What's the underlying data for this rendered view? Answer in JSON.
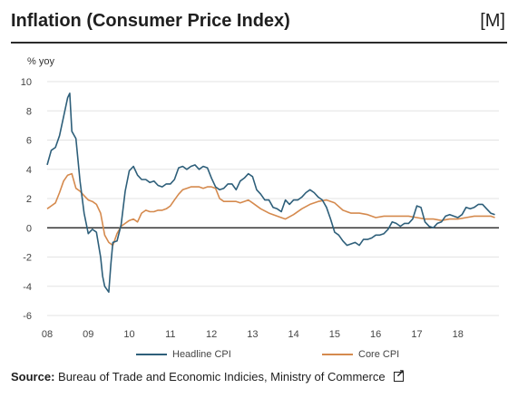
{
  "header": {
    "title": "Inflation (Consumer Price Index)",
    "frequency": "[M]"
  },
  "source": {
    "label": "Source:",
    "text": "Bureau of Trade and Economic Indicies, Ministry of Commerce",
    "icon": "external-link-icon"
  },
  "chart_data": {
    "type": "line",
    "ylabel": "% yoy",
    "ylim": [
      -6,
      10
    ],
    "yticks": [
      -6,
      -4,
      -2,
      0,
      2,
      4,
      6,
      8,
      10
    ],
    "xlim": [
      2008,
      2019
    ],
    "xticks": [
      {
        "value": 2008,
        "label": "08"
      },
      {
        "value": 2009,
        "label": "09"
      },
      {
        "value": 2010,
        "label": "10"
      },
      {
        "value": 2011,
        "label": "11"
      },
      {
        "value": 2012,
        "label": "12"
      },
      {
        "value": 2013,
        "label": "13"
      },
      {
        "value": 2014,
        "label": "14"
      },
      {
        "value": 2015,
        "label": "15"
      },
      {
        "value": 2016,
        "label": "16"
      },
      {
        "value": 2017,
        "label": "17"
      },
      {
        "value": 2018,
        "label": "18"
      }
    ],
    "grid": true,
    "legend_position": "bottom",
    "zero_line": true,
    "series": [
      {
        "name": "Headline CPI",
        "color": "#2e5f7a",
        "x": [
          2008.0,
          2008.1,
          2008.2,
          2008.3,
          2008.4,
          2008.5,
          2008.55,
          2008.6,
          2008.7,
          2008.8,
          2008.9,
          2009.0,
          2009.1,
          2009.2,
          2009.3,
          2009.35,
          2009.4,
          2009.5,
          2009.55,
          2009.6,
          2009.7,
          2009.8,
          2009.9,
          2010.0,
          2010.1,
          2010.2,
          2010.3,
          2010.4,
          2010.5,
          2010.6,
          2010.7,
          2010.8,
          2010.9,
          2011.0,
          2011.1,
          2011.2,
          2011.3,
          2011.4,
          2011.5,
          2011.6,
          2011.7,
          2011.8,
          2011.9,
          2012.0,
          2012.1,
          2012.2,
          2012.3,
          2012.4,
          2012.5,
          2012.6,
          2012.7,
          2012.8,
          2012.9,
          2013.0,
          2013.1,
          2013.2,
          2013.3,
          2013.4,
          2013.5,
          2013.6,
          2013.7,
          2013.8,
          2013.9,
          2014.0,
          2014.1,
          2014.2,
          2014.3,
          2014.4,
          2014.5,
          2014.6,
          2014.7,
          2014.8,
          2014.9,
          2015.0,
          2015.1,
          2015.2,
          2015.3,
          2015.4,
          2015.5,
          2015.6,
          2015.7,
          2015.8,
          2015.9,
          2016.0,
          2016.1,
          2016.2,
          2016.3,
          2016.4,
          2016.5,
          2016.6,
          2016.7,
          2016.8,
          2016.9,
          2017.0,
          2017.1,
          2017.2,
          2017.3,
          2017.4,
          2017.5,
          2017.6,
          2017.7,
          2017.8,
          2017.9,
          2018.0,
          2018.1,
          2018.2,
          2018.3,
          2018.4,
          2018.5,
          2018.6,
          2018.7,
          2018.8,
          2018.9
        ],
        "values": [
          4.3,
          5.3,
          5.5,
          6.3,
          7.6,
          8.9,
          9.2,
          6.6,
          6.1,
          3.2,
          1.0,
          -0.4,
          -0.1,
          -0.3,
          -2.0,
          -3.3,
          -4.0,
          -4.4,
          -2.5,
          -1.0,
          -0.9,
          0.2,
          2.5,
          3.9,
          4.2,
          3.6,
          3.3,
          3.3,
          3.1,
          3.2,
          2.9,
          2.8,
          3.0,
          3.0,
          3.3,
          4.1,
          4.2,
          4.0,
          4.2,
          4.3,
          4.0,
          4.2,
          4.1,
          3.4,
          2.8,
          2.6,
          2.7,
          3.0,
          3.0,
          2.6,
          3.2,
          3.4,
          3.7,
          3.5,
          2.6,
          2.3,
          1.9,
          1.9,
          1.4,
          1.3,
          1.1,
          1.9,
          1.6,
          1.9,
          1.9,
          2.1,
          2.4,
          2.6,
          2.4,
          2.1,
          1.9,
          1.4,
          0.6,
          -0.3,
          -0.5,
          -0.9,
          -1.2,
          -1.1,
          -1.0,
          -1.2,
          -0.8,
          -0.8,
          -0.7,
          -0.5,
          -0.5,
          -0.4,
          -0.1,
          0.4,
          0.3,
          0.1,
          0.3,
          0.3,
          0.6,
          1.5,
          1.4,
          0.4,
          0.1,
          0.0,
          0.3,
          0.4,
          0.8,
          0.9,
          0.8,
          0.7,
          0.9,
          1.4,
          1.3,
          1.4,
          1.6,
          1.6,
          1.3,
          1.0,
          0.9
        ]
      },
      {
        "name": "Core CPI",
        "color": "#d58a4e",
        "x": [
          2008.0,
          2008.1,
          2008.2,
          2008.3,
          2008.4,
          2008.5,
          2008.6,
          2008.7,
          2008.8,
          2008.9,
          2009.0,
          2009.1,
          2009.2,
          2009.3,
          2009.4,
          2009.5,
          2009.6,
          2009.7,
          2009.8,
          2009.9,
          2010.0,
          2010.1,
          2010.2,
          2010.3,
          2010.4,
          2010.5,
          2010.6,
          2010.7,
          2010.8,
          2010.9,
          2011.0,
          2011.1,
          2011.2,
          2011.3,
          2011.4,
          2011.5,
          2011.6,
          2011.7,
          2011.8,
          2011.9,
          2012.0,
          2012.1,
          2012.2,
          2012.3,
          2012.4,
          2012.5,
          2012.6,
          2012.7,
          2012.8,
          2012.9,
          2013.0,
          2013.2,
          2013.4,
          2013.6,
          2013.8,
          2014.0,
          2014.2,
          2014.4,
          2014.6,
          2014.8,
          2015.0,
          2015.2,
          2015.4,
          2015.6,
          2015.8,
          2016.0,
          2016.2,
          2016.4,
          2016.6,
          2016.8,
          2017.0,
          2017.2,
          2017.4,
          2017.6,
          2017.8,
          2018.0,
          2018.2,
          2018.4,
          2018.6,
          2018.8,
          2018.9
        ],
        "values": [
          1.3,
          1.5,
          1.7,
          2.4,
          3.2,
          3.6,
          3.7,
          2.7,
          2.5,
          2.2,
          1.9,
          1.8,
          1.6,
          1.0,
          -0.5,
          -1.0,
          -1.2,
          -0.4,
          0.1,
          0.3,
          0.5,
          0.6,
          0.4,
          1.0,
          1.2,
          1.1,
          1.1,
          1.2,
          1.2,
          1.3,
          1.5,
          1.9,
          2.3,
          2.6,
          2.7,
          2.8,
          2.8,
          2.8,
          2.7,
          2.8,
          2.8,
          2.7,
          2.0,
          1.8,
          1.8,
          1.8,
          1.8,
          1.7,
          1.8,
          1.9,
          1.7,
          1.3,
          1.0,
          0.8,
          0.6,
          0.9,
          1.3,
          1.6,
          1.8,
          1.9,
          1.7,
          1.2,
          1.0,
          1.0,
          0.9,
          0.7,
          0.8,
          0.8,
          0.8,
          0.8,
          0.7,
          0.6,
          0.6,
          0.5,
          0.6,
          0.6,
          0.7,
          0.8,
          0.8,
          0.8,
          0.7
        ]
      }
    ]
  }
}
